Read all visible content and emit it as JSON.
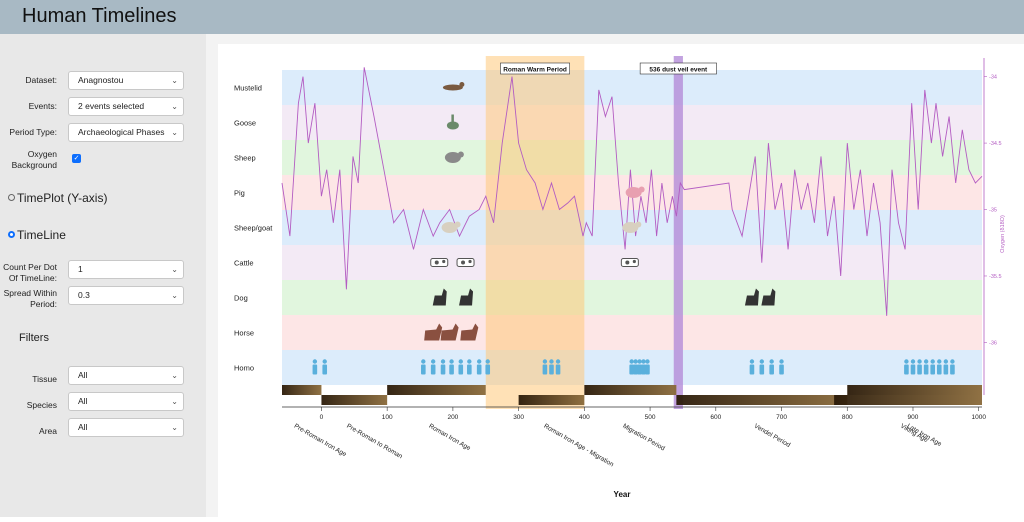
{
  "app": {
    "title": "Human Timelines"
  },
  "controls": {
    "dataset": {
      "label": "Dataset:",
      "value": "Anagnostou"
    },
    "events": {
      "label": "Events:",
      "value": "2 events selected"
    },
    "period_type": {
      "label": "Period Type:",
      "value": "Archaeological Phases"
    },
    "oxygen": {
      "label1": "Oxygen",
      "label2": "Background",
      "checked": true
    },
    "timeplot": {
      "label": "TimePlot (Y-axis)",
      "selected": false
    },
    "timeline": {
      "label": "TimeLine",
      "selected": true
    },
    "count_per_dot": {
      "label1": "Count Per Dot",
      "label2": "Of TimeLine:",
      "value": "1"
    },
    "spread": {
      "label1": "Spread Within",
      "label2": "Period:",
      "value": "0.3"
    },
    "filters_title": "Filters",
    "tissue": {
      "label": "Tissue",
      "value": "All"
    },
    "species": {
      "label": "Species",
      "value": "All"
    },
    "area": {
      "label": "Area",
      "value": "All"
    }
  },
  "chart_data": {
    "type": "line",
    "title": "",
    "xlabel": "Year",
    "ylabel_right": "Oxygen (δ18O)",
    "xlim": [
      -60,
      1005
    ],
    "x_ticks": [
      0,
      100,
      200,
      300,
      400,
      500,
      600,
      700,
      800,
      900,
      1000
    ],
    "y_right_ticks": [
      "-34",
      "-34.5",
      "-35",
      "-35.5",
      "-36"
    ],
    "y_right_range": [
      -33.95,
      -36.2
    ],
    "species_rows": [
      {
        "name": "Mustelid",
        "color": "#dcecfb",
        "icon": "mustelid-icon",
        "x": [
          200
        ]
      },
      {
        "name": "Goose",
        "color": "#f3eaf5",
        "icon": "goose-icon",
        "x": [
          200
        ]
      },
      {
        "name": "Sheep",
        "color": "#e1f6de",
        "icon": "sheep-icon",
        "x": [
          200
        ]
      },
      {
        "name": "Pig",
        "color": "#fde6e6",
        "icon": "pig-icon",
        "x": [
          475
        ]
      },
      {
        "name": "Sheep/goat",
        "color": "#dcecfb",
        "icon": "sheep-goat-icon",
        "x": [
          195,
          470
        ]
      },
      {
        "name": "Cattle",
        "color": "#f3eaf5",
        "icon": "cattle-icon",
        "x": [
          180,
          220,
          470
        ]
      },
      {
        "name": "Dog",
        "color": "#e1f6de",
        "icon": "dog-icon",
        "x": [
          180,
          220,
          655,
          680
        ]
      },
      {
        "name": "Horse",
        "color": "#fde6e6",
        "icon": "horse-icon",
        "x": [
          170,
          195,
          225
        ]
      },
      {
        "name": "Homo",
        "color": "#dcecfb",
        "icon": "homo-icon",
        "x": [
          -10,
          5,
          155,
          170,
          185,
          198,
          212,
          225,
          240,
          253,
          340,
          350,
          360,
          472,
          478,
          484,
          490,
          496,
          655,
          670,
          685,
          700,
          890,
          900,
          910,
          920,
          930,
          940,
          950,
          960
        ]
      }
    ],
    "events": [
      {
        "name": "Roman Warm Period",
        "start": 250,
        "end": 400
      },
      {
        "name": "536 dust veil event",
        "start": 536,
        "end": 550
      }
    ],
    "periods": [
      {
        "name": "Pre-Roman Iron Age",
        "start": -60,
        "end": 0
      },
      {
        "name": "Pre-Roman to Roman",
        "start": 0,
        "end": 100
      },
      {
        "name": "Roman Iron Age",
        "start": 100,
        "end": 250
      },
      {
        "name": "Roman Iron Age - Migration",
        "start": 300,
        "end": 400
      },
      {
        "name": "Migration Period",
        "start": 400,
        "end": 540
      },
      {
        "name": "Vendel Period",
        "start": 540,
        "end": 800
      },
      {
        "name": "Late Iron Age",
        "start": 800,
        "end": 1005
      },
      {
        "name": "Viking Age",
        "start": 780,
        "end": 1005
      }
    ],
    "oxygen_series": {
      "x": [
        -60,
        -48,
        -35,
        -28,
        -20,
        -10,
        0,
        8,
        18,
        28,
        38,
        48,
        56,
        65,
        80,
        95,
        110,
        125,
        140,
        155,
        170,
        180,
        195,
        210,
        225,
        240,
        250,
        262,
        275,
        290,
        300,
        312,
        325,
        337,
        350,
        362,
        375,
        385,
        398,
        403,
        412,
        422,
        432,
        442,
        452,
        462,
        470,
        478,
        486,
        494,
        502,
        510,
        518,
        526,
        534,
        540,
        546,
        552,
        620,
        625,
        640,
        650,
        660,
        670,
        680,
        690,
        700,
        710,
        720,
        730,
        740,
        750,
        760,
        770,
        780,
        790,
        800,
        810,
        820,
        830,
        840,
        850,
        860,
        868,
        878,
        888,
        898,
        908,
        918,
        928,
        935,
        945,
        955,
        965,
        975,
        985,
        995,
        1005
      ],
      "y": [
        -34.8,
        -35.2,
        -34.2,
        -34.0,
        -34.5,
        -34.2,
        -34.9,
        -34.7,
        -35.1,
        -34.7,
        -35.6,
        -34.6,
        -34.8,
        -33.93,
        -34.3,
        -34.7,
        -35.1,
        -35.0,
        -35.3,
        -35.0,
        -35.2,
        -35.1,
        -35.0,
        -35.2,
        -35.05,
        -35.0,
        -34.9,
        -35.1,
        -34.5,
        -34.0,
        -34.5,
        -34.7,
        -34.8,
        -35.0,
        -34.8,
        -35.0,
        -34.95,
        -34.9,
        -35.2,
        -35.1,
        -35.2,
        -34.1,
        -34.3,
        -34.15,
        -34.8,
        -35.3,
        -34.7,
        -35.2,
        -34.9,
        -35.1,
        -34.7,
        -35.2,
        -34.8,
        -35.1,
        -34.9,
        -35.05,
        -34.8,
        -34.85,
        -34.8,
        -35.0,
        -35.2,
        -34.9,
        -34.6,
        -35.4,
        -34.5,
        -35.0,
        -34.8,
        -35.3,
        -34.7,
        -35.0,
        -34.8,
        -35.1,
        -34.6,
        -35.2,
        -34.9,
        -35.5,
        -34.5,
        -35.0,
        -34.7,
        -35.2,
        -34.8,
        -35.1,
        -35.8,
        -34.7,
        -35.1,
        -35.3,
        -34.2,
        -35.0,
        -34.1,
        -34.5,
        -34.2,
        -34.6,
        -34.3,
        -34.8,
        -34.4,
        -34.7,
        -34.8,
        -34.75
      ]
    }
  }
}
